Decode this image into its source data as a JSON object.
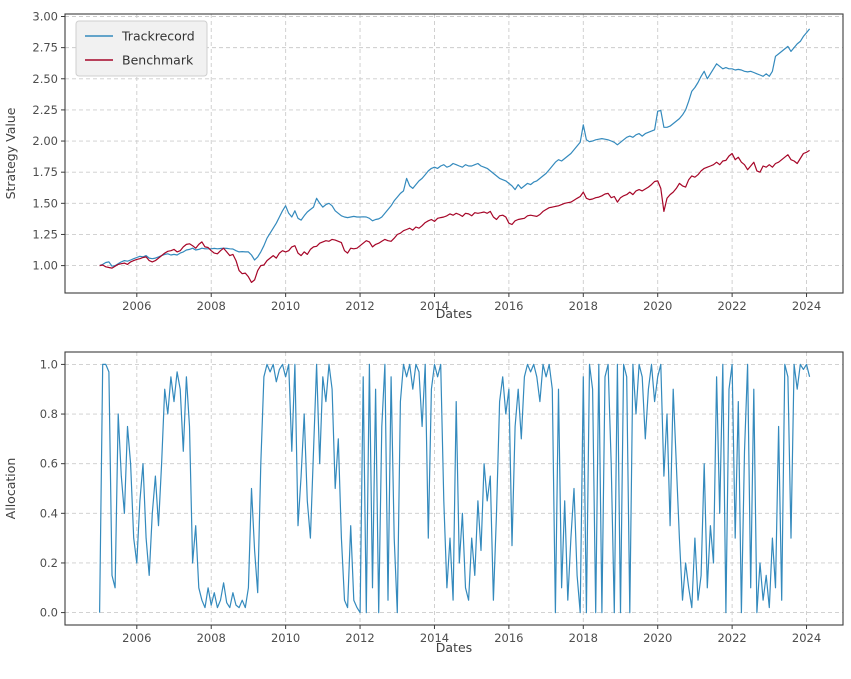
{
  "figure": {
    "background": "#ffffff",
    "grid_color": "#cccccc",
    "spine_color": "#3c3c3c",
    "tick_label_color": "#4d4d4d",
    "axis_label_color": "#404040",
    "legend_bg": "#f1f1f1",
    "legend_border": "#cfcfcf",
    "legend_text_color": "#333333"
  },
  "chart_data": [
    {
      "type": "line",
      "title": "",
      "xlabel": "Dates",
      "ylabel": "Strategy Value",
      "xlim": [
        2004.07,
        2024.98
      ],
      "ylim": [
        0.78,
        3.02
      ],
      "xticks": [
        2006,
        2008,
        2010,
        2012,
        2014,
        2016,
        2018,
        2020,
        2022,
        2024
      ],
      "yticks": [
        1.0,
        1.25,
        1.5,
        1.75,
        2.0,
        2.25,
        2.5,
        2.75,
        3.0
      ],
      "ytick_decimals": 2,
      "grid": true,
      "legend": {
        "position": "upper-left",
        "entries": [
          "Trackrecord",
          "Benchmark"
        ]
      },
      "x_start": 2005.0,
      "x_step": 0.083333,
      "series": [
        {
          "name": "Trackrecord",
          "color": "#348ABD",
          "values": [
            1.0,
            1.01,
            1.025,
            1.03,
            0.995,
            1.0,
            1.015,
            1.03,
            1.04,
            1.035,
            1.045,
            1.055,
            1.065,
            1.075,
            1.07,
            1.08,
            1.06,
            1.055,
            1.06,
            1.07,
            1.08,
            1.09,
            1.095,
            1.085,
            1.09,
            1.085,
            1.1,
            1.11,
            1.125,
            1.13,
            1.14,
            1.125,
            1.13,
            1.14,
            1.135,
            1.135,
            1.135,
            1.138,
            1.135,
            1.137,
            1.14,
            1.138,
            1.135,
            1.133,
            1.12,
            1.11,
            1.112,
            1.11,
            1.11,
            1.085,
            1.045,
            1.07,
            1.11,
            1.16,
            1.22,
            1.26,
            1.3,
            1.34,
            1.39,
            1.44,
            1.48,
            1.42,
            1.39,
            1.44,
            1.38,
            1.365,
            1.4,
            1.43,
            1.45,
            1.47,
            1.54,
            1.5,
            1.47,
            1.49,
            1.5,
            1.48,
            1.44,
            1.42,
            1.4,
            1.39,
            1.385,
            1.39,
            1.395,
            1.39,
            1.39,
            1.392,
            1.39,
            1.38,
            1.36,
            1.37,
            1.375,
            1.39,
            1.42,
            1.45,
            1.48,
            1.52,
            1.55,
            1.58,
            1.6,
            1.7,
            1.64,
            1.62,
            1.65,
            1.68,
            1.7,
            1.73,
            1.76,
            1.78,
            1.79,
            1.78,
            1.8,
            1.81,
            1.79,
            1.8,
            1.82,
            1.81,
            1.8,
            1.79,
            1.81,
            1.8,
            1.8,
            1.81,
            1.82,
            1.8,
            1.79,
            1.78,
            1.76,
            1.74,
            1.72,
            1.7,
            1.69,
            1.68,
            1.66,
            1.64,
            1.61,
            1.65,
            1.62,
            1.64,
            1.66,
            1.65,
            1.67,
            1.68,
            1.7,
            1.72,
            1.74,
            1.77,
            1.8,
            1.83,
            1.85,
            1.84,
            1.86,
            1.88,
            1.9,
            1.93,
            1.96,
            1.99,
            2.13,
            2.01,
            1.995,
            2.0,
            2.01,
            2.015,
            2.02,
            2.015,
            2.01,
            2.0,
            1.99,
            1.97,
            1.99,
            2.01,
            2.03,
            2.04,
            2.03,
            2.05,
            2.06,
            2.04,
            2.06,
            2.07,
            2.08,
            2.09,
            2.24,
            2.245,
            2.11,
            2.11,
            2.12,
            2.14,
            2.16,
            2.18,
            2.21,
            2.25,
            2.32,
            2.4,
            2.43,
            2.47,
            2.52,
            2.56,
            2.5,
            2.54,
            2.58,
            2.62,
            2.6,
            2.58,
            2.59,
            2.58,
            2.58,
            2.57,
            2.575,
            2.57,
            2.56,
            2.555,
            2.56,
            2.55,
            2.54,
            2.53,
            2.52,
            2.54,
            2.52,
            2.56,
            2.68,
            2.7,
            2.72,
            2.74,
            2.76,
            2.72,
            2.75,
            2.78,
            2.8,
            2.84,
            2.87,
            2.9
          ]
        },
        {
          "name": "Benchmark",
          "color": "#A60628",
          "values": [
            1.0,
            1.005,
            0.99,
            0.985,
            0.98,
            0.995,
            1.01,
            1.015,
            1.02,
            1.01,
            1.03,
            1.04,
            1.05,
            1.055,
            1.065,
            1.07,
            1.04,
            1.03,
            1.04,
            1.06,
            1.08,
            1.1,
            1.115,
            1.12,
            1.13,
            1.11,
            1.12,
            1.15,
            1.17,
            1.175,
            1.16,
            1.14,
            1.17,
            1.19,
            1.15,
            1.145,
            1.12,
            1.1,
            1.095,
            1.12,
            1.14,
            1.11,
            1.08,
            1.09,
            1.04,
            0.96,
            0.935,
            0.94,
            0.91,
            0.865,
            0.885,
            0.96,
            1.0,
            1.005,
            1.04,
            1.06,
            1.08,
            1.06,
            1.1,
            1.12,
            1.11,
            1.12,
            1.15,
            1.16,
            1.1,
            1.08,
            1.11,
            1.09,
            1.13,
            1.15,
            1.155,
            1.18,
            1.19,
            1.2,
            1.195,
            1.21,
            1.205,
            1.195,
            1.185,
            1.12,
            1.1,
            1.14,
            1.135,
            1.14,
            1.16,
            1.18,
            1.2,
            1.19,
            1.15,
            1.17,
            1.18,
            1.195,
            1.21,
            1.2,
            1.195,
            1.22,
            1.25,
            1.26,
            1.28,
            1.29,
            1.3,
            1.285,
            1.31,
            1.3,
            1.32,
            1.345,
            1.36,
            1.37,
            1.355,
            1.38,
            1.385,
            1.39,
            1.4,
            1.415,
            1.405,
            1.42,
            1.41,
            1.395,
            1.42,
            1.415,
            1.4,
            1.425,
            1.42,
            1.425,
            1.43,
            1.42,
            1.435,
            1.39,
            1.37,
            1.4,
            1.405,
            1.39,
            1.34,
            1.33,
            1.36,
            1.37,
            1.375,
            1.38,
            1.4,
            1.405,
            1.4,
            1.395,
            1.41,
            1.435,
            1.45,
            1.465,
            1.47,
            1.475,
            1.48,
            1.49,
            1.5,
            1.505,
            1.51,
            1.525,
            1.54,
            1.555,
            1.59,
            1.54,
            1.53,
            1.535,
            1.545,
            1.55,
            1.56,
            1.575,
            1.58,
            1.545,
            1.555,
            1.51,
            1.545,
            1.56,
            1.57,
            1.59,
            1.57,
            1.6,
            1.61,
            1.6,
            1.615,
            1.63,
            1.65,
            1.675,
            1.68,
            1.62,
            1.435,
            1.54,
            1.57,
            1.59,
            1.62,
            1.66,
            1.64,
            1.63,
            1.69,
            1.72,
            1.71,
            1.73,
            1.76,
            1.78,
            1.79,
            1.8,
            1.81,
            1.83,
            1.81,
            1.84,
            1.845,
            1.88,
            1.9,
            1.85,
            1.87,
            1.83,
            1.81,
            1.77,
            1.8,
            1.83,
            1.76,
            1.75,
            1.8,
            1.79,
            1.81,
            1.79,
            1.82,
            1.83,
            1.85,
            1.87,
            1.89,
            1.85,
            1.84,
            1.82,
            1.86,
            1.9,
            1.91,
            1.925
          ]
        }
      ]
    },
    {
      "type": "line",
      "title": "",
      "xlabel": "Dates",
      "ylabel": "Allocation",
      "xlim": [
        2004.07,
        2024.98
      ],
      "ylim": [
        -0.05,
        1.05
      ],
      "xticks": [
        2006,
        2008,
        2010,
        2012,
        2014,
        2016,
        2018,
        2020,
        2022,
        2024
      ],
      "yticks": [
        0.0,
        0.2,
        0.4,
        0.6,
        0.8,
        1.0
      ],
      "ytick_decimals": 1,
      "grid": true,
      "legend": null,
      "x_start": 2005.0,
      "x_step": 0.083333,
      "series": [
        {
          "name": "Allocation",
          "color": "#348ABD",
          "values": [
            0.0,
            1.0,
            1.0,
            0.97,
            0.15,
            0.1,
            0.8,
            0.55,
            0.4,
            0.75,
            0.6,
            0.3,
            0.2,
            0.45,
            0.6,
            0.3,
            0.15,
            0.4,
            0.55,
            0.35,
            0.6,
            0.9,
            0.8,
            0.95,
            0.85,
            0.97,
            0.9,
            0.65,
            0.95,
            0.75,
            0.2,
            0.35,
            0.1,
            0.05,
            0.02,
            0.1,
            0.03,
            0.08,
            0.02,
            0.05,
            0.12,
            0.04,
            0.02,
            0.08,
            0.03,
            0.02,
            0.05,
            0.02,
            0.1,
            0.5,
            0.25,
            0.08,
            0.6,
            0.95,
            1.0,
            0.97,
            1.0,
            0.93,
            0.98,
            1.0,
            0.95,
            1.0,
            0.65,
            1.0,
            0.35,
            0.55,
            0.8,
            0.45,
            0.3,
            0.65,
            1.0,
            0.6,
            0.95,
            0.85,
            1.0,
            0.9,
            0.5,
            0.7,
            0.3,
            0.05,
            0.02,
            0.35,
            0.05,
            0.02,
            0.0,
            0.95,
            0.0,
            1.0,
            0.1,
            0.9,
            0.0,
            0.75,
            1.0,
            0.05,
            0.95,
            0.3,
            0.0,
            0.85,
            1.0,
            0.95,
            1.0,
            0.9,
            1.0,
            0.97,
            0.75,
            1.0,
            0.3,
            0.9,
            1.0,
            0.95,
            1.0,
            0.45,
            0.1,
            0.3,
            0.05,
            0.85,
            0.2,
            0.4,
            0.1,
            0.05,
            0.3,
            0.15,
            0.45,
            0.25,
            0.6,
            0.45,
            0.55,
            0.05,
            0.4,
            0.85,
            0.95,
            0.8,
            0.9,
            0.27,
            0.75,
            0.9,
            0.7,
            0.95,
            1.0,
            0.97,
            1.0,
            0.95,
            0.85,
            1.0,
            0.95,
            1.0,
            0.9,
            0.0,
            0.9,
            0.1,
            0.45,
            0.05,
            0.3,
            0.5,
            0.15,
            0.0,
            0.95,
            0.0,
            1.0,
            0.9,
            0.0,
            1.0,
            0.0,
            0.95,
            1.0,
            0.6,
            0.0,
            1.0,
            0.0,
            1.0,
            0.95,
            0.0,
            1.0,
            0.8,
            1.0,
            0.95,
            0.7,
            0.9,
            1.0,
            0.85,
            0.95,
            1.0,
            0.55,
            0.8,
            0.35,
            0.9,
            0.6,
            0.3,
            0.05,
            0.2,
            0.1,
            0.02,
            0.3,
            0.05,
            0.15,
            0.6,
            0.1,
            0.35,
            0.2,
            0.95,
            0.4,
            1.0,
            0.0,
            0.9,
            1.0,
            0.3,
            0.85,
            0.0,
            0.65,
            1.0,
            0.1,
            0.9,
            0.0,
            0.2,
            0.05,
            0.15,
            0.02,
            0.3,
            0.1,
            0.75,
            0.05,
            1.0,
            0.95,
            0.3,
            1.0,
            0.9,
            1.0,
            0.98,
            1.0,
            0.95
          ]
        }
      ]
    }
  ]
}
